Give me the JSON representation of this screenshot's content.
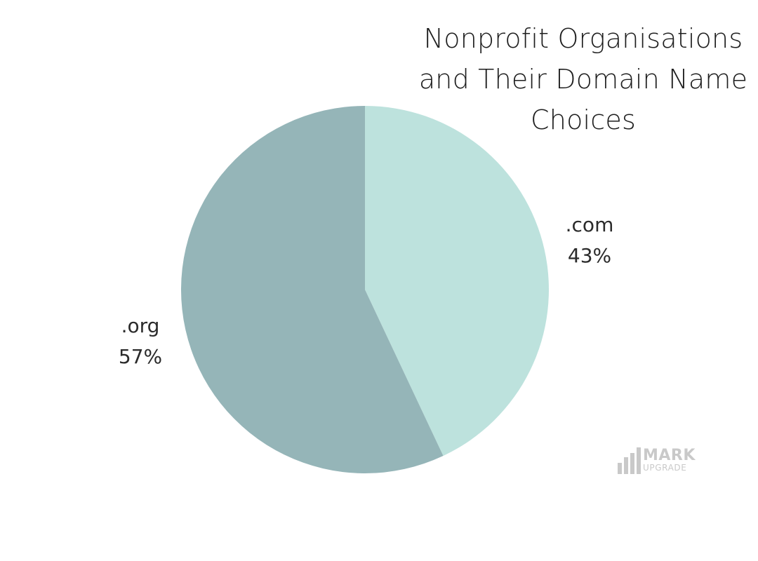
{
  "chart_data": {
    "type": "pie",
    "title_lines": [
      "Nonprofit Organisations",
      "and Their Domain Name",
      "Choices"
    ],
    "slices": [
      {
        "label": ".com",
        "value": 43,
        "value_label": "43%",
        "color": "#bde2dd"
      },
      {
        "label": ".org",
        "value": 57,
        "value_label": "57%",
        "color": "#95b5b8"
      }
    ],
    "start": "12 o'clock",
    "direction": "clockwise"
  },
  "watermark": {
    "line1": "MARK",
    "line2": "UPGRADE",
    "color": "#c9c9c9",
    "icon": "bar-chart-icon"
  }
}
